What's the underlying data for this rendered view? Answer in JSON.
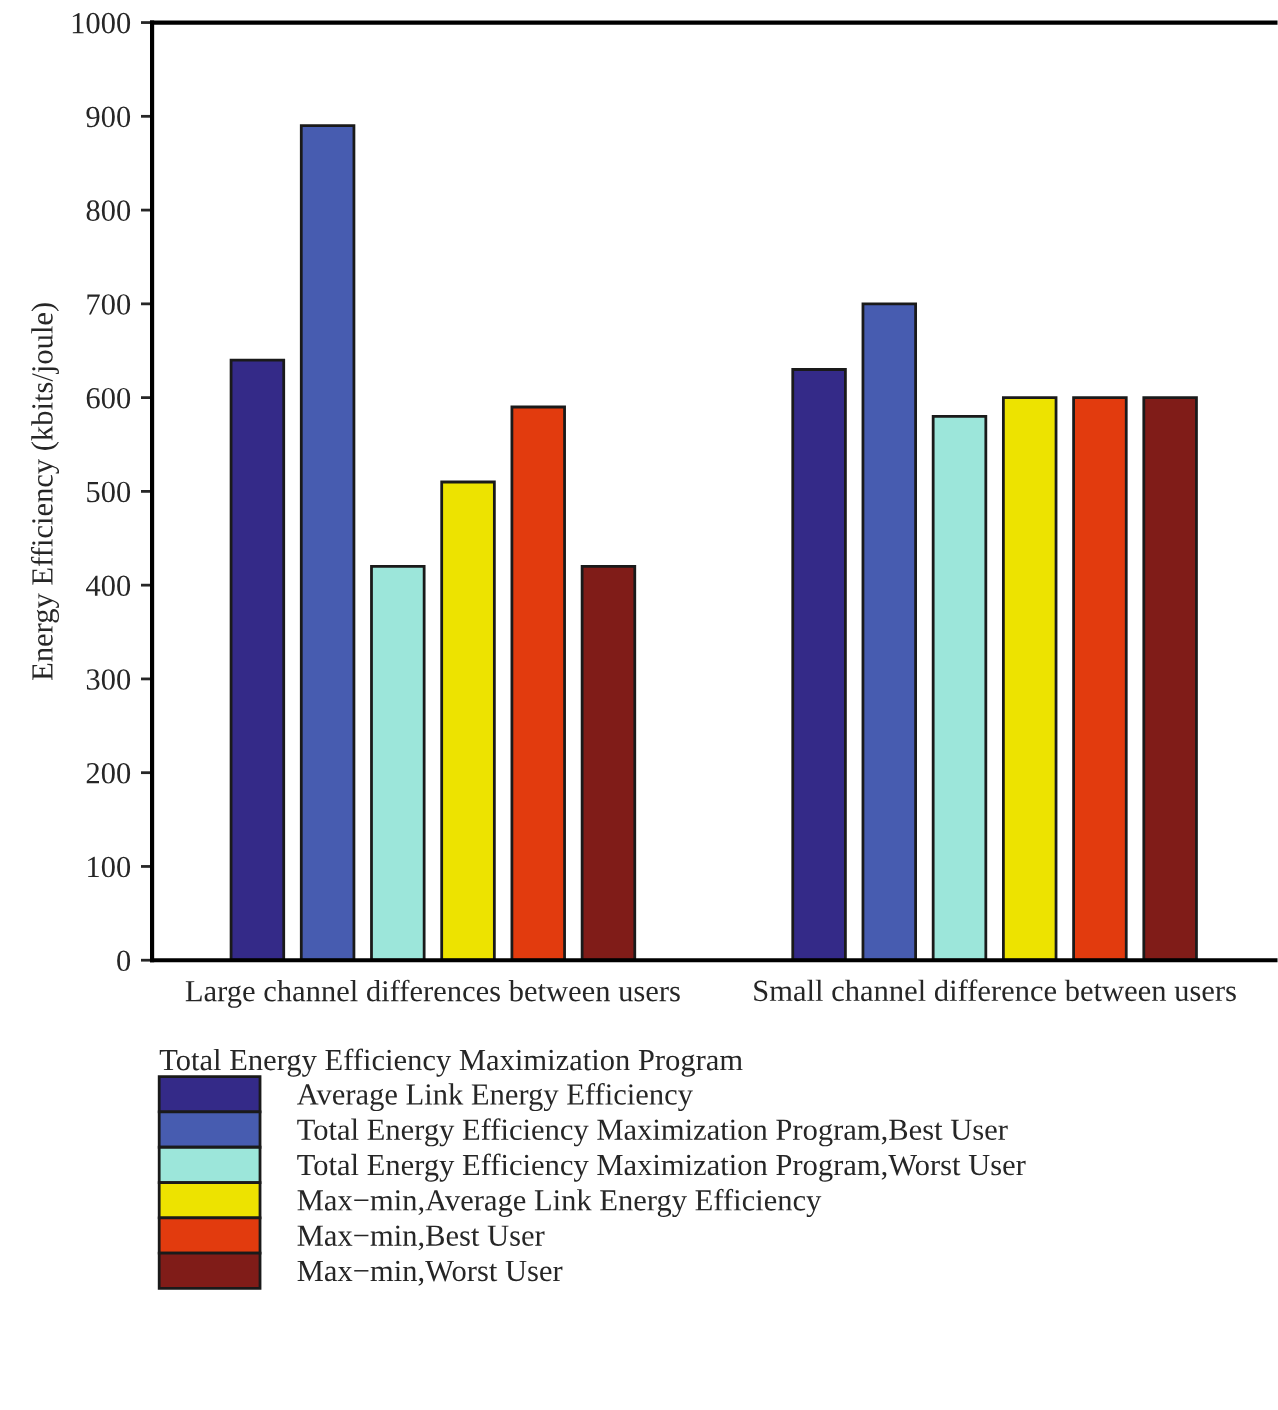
{
  "chart_data": {
    "type": "bar",
    "ylabel": "Energy Efficiency (kbits/joule)",
    "legend_title": "Total Energy Efficiency Maximization Program",
    "categories": [
      "Large channel differences between users",
      "Small channel difference between users"
    ],
    "series": [
      {
        "name": "Average Link Energy Efficiency",
        "color": "#342a88",
        "values": [
          640,
          630
        ]
      },
      {
        "name": "Total Energy Efficiency Maximization Program,Best User",
        "color": "#475cb0",
        "values": [
          890,
          700
        ]
      },
      {
        "name": "Total Energy Efficiency Maximization Program,Worst User",
        "color": "#9ce6da",
        "values": [
          420,
          580
        ]
      },
      {
        "name": "Max−min,Average Link Energy Efficiency",
        "color": "#ede300",
        "values": [
          510,
          600
        ]
      },
      {
        "name": "Max−min,Best User",
        "color": "#e23b0e",
        "values": [
          590,
          600
        ]
      },
      {
        "name": "Max−min,Worst User",
        "color": "#801c18",
        "values": [
          420,
          600
        ]
      }
    ],
    "ylim": [
      0,
      1000
    ],
    "yticks": [
      0,
      100,
      200,
      300,
      400,
      500,
      600,
      700,
      800,
      900,
      1000
    ],
    "grid": false,
    "legend": "bottom"
  }
}
